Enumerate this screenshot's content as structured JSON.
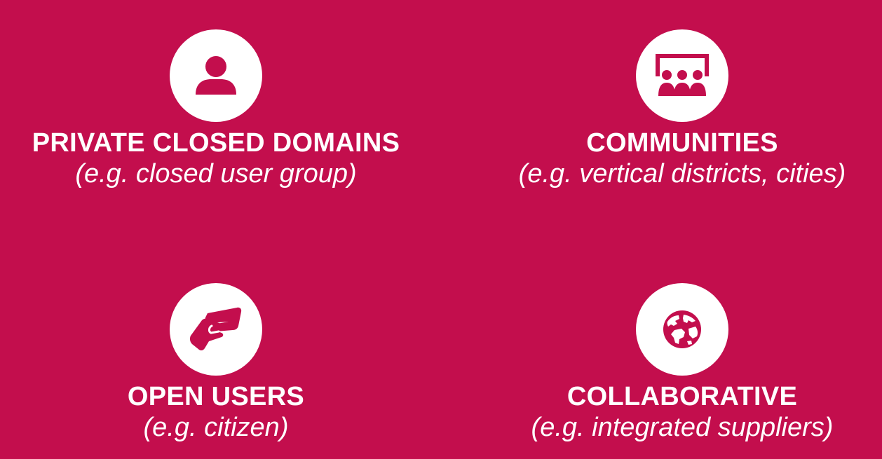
{
  "colors": {
    "background": "#c30e4d",
    "foreground": "#ffffff"
  },
  "tiles": [
    {
      "icon": "person-icon",
      "title": "PRIVATE CLOSED DOMAINS",
      "subtitle": "(e.g. closed user group)"
    },
    {
      "icon": "presentation-audience-icon",
      "title": "COMMUNITIES",
      "subtitle": "(e.g. vertical districts, cities)"
    },
    {
      "icon": "handshake-icon",
      "title": "OPEN USERS",
      "subtitle": "(e.g. citizen)"
    },
    {
      "icon": "globe-icon",
      "title": "COLLABORATIVE",
      "subtitle": "(e.g. integrated suppliers)"
    }
  ]
}
